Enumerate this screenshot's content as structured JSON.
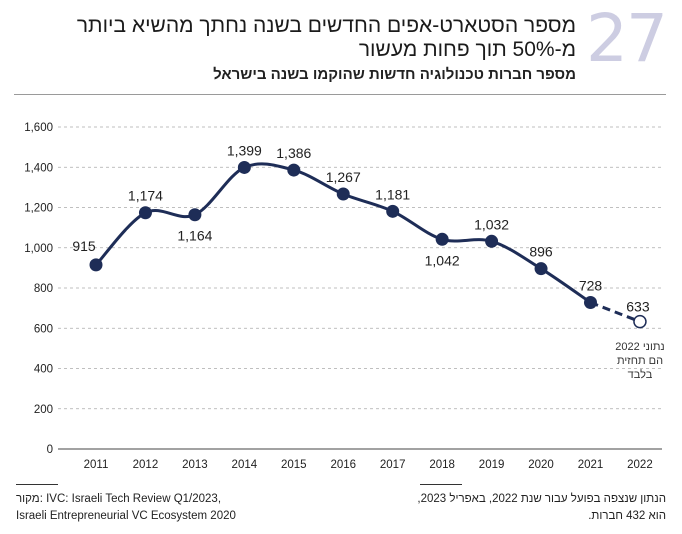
{
  "header": {
    "number": "27",
    "title_line1": "מספר הסטארט-אפים החדשים בשנה נחתך מהשיא ביותר",
    "title_line2": "מ-50% תוך פחות מעשור",
    "subtitle": "מספר חברות טכנולוגיה חדשות שהוקמו בשנה בישראל"
  },
  "chart_data": {
    "type": "line",
    "categories": [
      "2011",
      "2012",
      "2013",
      "2014",
      "2015",
      "2016",
      "2017",
      "2018",
      "2019",
      "2020",
      "2021",
      "2022"
    ],
    "values": [
      915,
      1174,
      1164,
      1399,
      1386,
      1267,
      1181,
      1042,
      1032,
      896,
      728,
      633
    ],
    "data_labels": [
      "915",
      "1,174",
      "1,164",
      "1,399",
      "1,386",
      "1,267",
      "1,181",
      "1,042",
      "1,032",
      "896",
      "728",
      "633"
    ],
    "ylim": [
      0,
      1600
    ],
    "yticks": [
      "0",
      "200",
      "400",
      "600",
      "800",
      "1,000",
      "1,200",
      "1,400",
      "1,600"
    ],
    "grid": true,
    "line_color": "#1e2d57",
    "forecast_point": "2022",
    "annotation": [
      "נתוני 2022",
      "הם תחזית",
      "בלבד"
    ]
  },
  "footer": {
    "source_line1": "מקור: IVC: Israeli Tech Review Q1/2023,",
    "source_line2": "Israeli Entrepreneurial VC Ecosystem 2020",
    "note_line1": "הנתון שנצפה בפועל עבור שנת 2022, באפריל 2023,",
    "note_line2": "הוא 432 חברות."
  }
}
